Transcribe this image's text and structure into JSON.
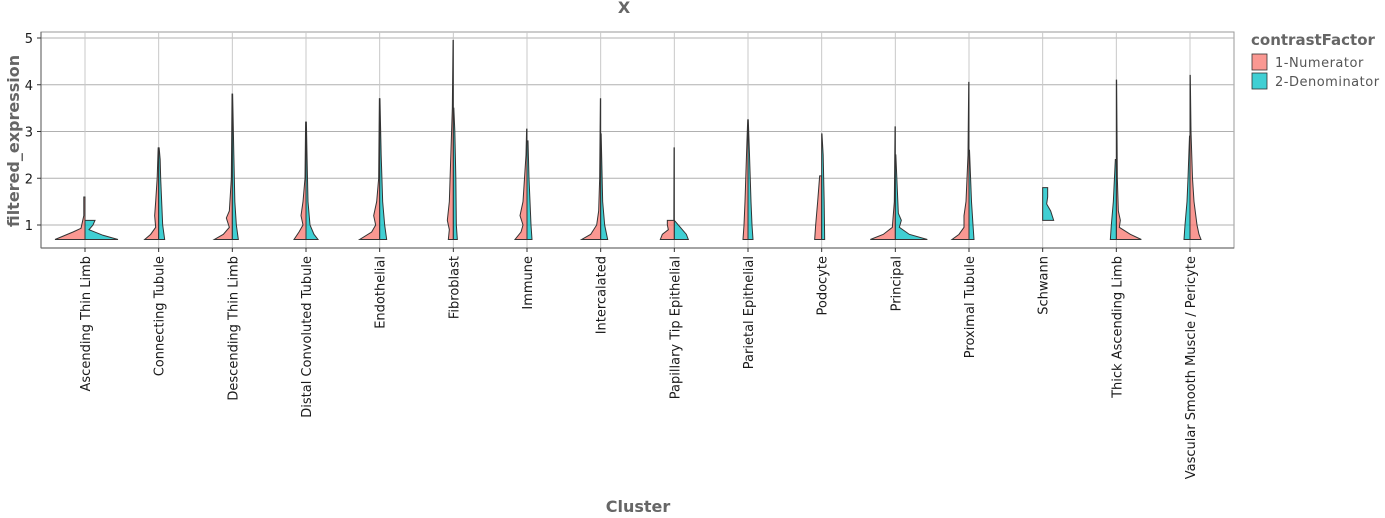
{
  "chart_data": {
    "type": "violin",
    "title": "X",
    "xlabel": "Cluster",
    "ylabel": "filtered_expression",
    "ylim": [
      0.5,
      5.1
    ],
    "yticks": [
      1,
      2,
      3,
      4,
      5
    ],
    "grid": true,
    "legend_position": "right",
    "legend": {
      "title": "contrastFactor",
      "entries": [
        {
          "label": "1-Numerator",
          "color": "#F8766D"
        },
        {
          "label": "2-Denominator",
          "color": "#00BFC4"
        }
      ]
    },
    "categories": [
      "Ascending Thin Limb",
      "Connecting Tubule",
      "Descending Thin Limb",
      "Distal Convoluted Tubule",
      "Endothelial",
      "Fibroblast",
      "Immune",
      "Intercalated",
      "Papillary Tip Epithelial",
      "Parietal Epithelial",
      "Podocyte",
      "Principal",
      "Proximal Tubule",
      "Schwann",
      "Thick Ascending Limb",
      "Vascular Smooth Muscle / Pericyte"
    ],
    "series": [
      {
        "name": "1-Numerator",
        "min": [
          0.69,
          0.69,
          0.69,
          0.69,
          0.69,
          0.69,
          0.69,
          0.69,
          0.69,
          0.69,
          0.69,
          0.69,
          0.69,
          null,
          0.69,
          0.69
        ],
        "max": [
          1.6,
          2.65,
          3.8,
          3.2,
          3.7,
          4.95,
          3.05,
          3.7,
          2.65,
          3.25,
          2.05,
          3.1,
          4.05,
          null,
          4.1,
          4.2
        ]
      },
      {
        "name": "2-Denominator",
        "min": [
          0.69,
          0.69,
          0.69,
          0.69,
          0.69,
          0.69,
          0.69,
          0.69,
          0.69,
          0.69,
          0.69,
          0.69,
          0.69,
          1.1,
          0.69,
          0.69
        ],
        "max": [
          1.1,
          2.65,
          3.8,
          3.2,
          3.7,
          3.5,
          2.8,
          2.95,
          1.1,
          3.25,
          2.95,
          2.5,
          2.6,
          1.8,
          2.4,
          2.9
        ]
      }
    ]
  },
  "legend": {
    "title": "contrastFactor",
    "items": [
      {
        "label": "1-Numerator",
        "color": "#F8766D"
      },
      {
        "label": "2-Denominator",
        "color": "#00BFC4"
      }
    ]
  },
  "axes": {
    "title": "X",
    "xlabel": "Cluster",
    "ylabel": "filtered_expression",
    "yticks": [
      "1",
      "2",
      "3",
      "4",
      "5"
    ]
  }
}
